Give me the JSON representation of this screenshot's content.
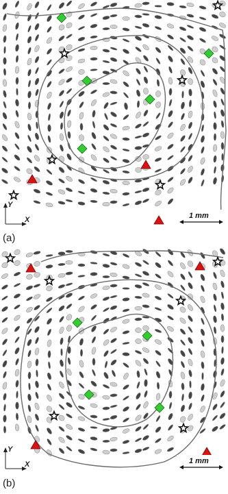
{
  "panels": [
    {
      "label": "(a)",
      "scale_label": "1 mm",
      "axis_x_label": "X",
      "axis_y_label": "Y",
      "markers": {
        "green_diamond": [
          [
            90,
            26
          ],
          [
            127,
            118
          ],
          [
            219,
            145
          ],
          [
            120,
            217
          ],
          [
            305,
            78
          ]
        ],
        "red_triangle": [
          [
            213,
            241
          ],
          [
            47,
            262
          ],
          [
            232,
            322
          ]
        ],
        "black_star": [
          [
            94,
            78
          ],
          [
            266,
            117
          ],
          [
            76,
            233
          ],
          [
            234,
            270
          ],
          [
            20,
            285
          ],
          [
            318,
            8
          ]
        ]
      }
    },
    {
      "label": "(b)",
      "scale_label": "1 mm",
      "axis_x_label": "X",
      "axis_y_label": "Y",
      "markers": {
        "green_diamond": [
          [
            113,
            109
          ],
          [
            215,
            128
          ],
          [
            130,
            214
          ],
          [
            233,
            233
          ]
        ],
        "red_triangle": [
          [
            45,
            30
          ],
          [
            292,
            27
          ],
          [
            52,
            288
          ],
          [
            302,
            298
          ]
        ],
        "black_star": [
          [
            318,
            20
          ],
          [
            15,
            15
          ],
          [
            72,
            48
          ],
          [
            264,
            77
          ],
          [
            79,
            245
          ],
          [
            268,
            263
          ]
        ]
      }
    }
  ],
  "colors": {
    "contour": "#6a6a6a",
    "ellipse_fill": "#cfcfcf",
    "ellipse_stroke": "#8c8c8c",
    "green": "#33cc33",
    "red": "#dd1111",
    "star": "#111111"
  }
}
